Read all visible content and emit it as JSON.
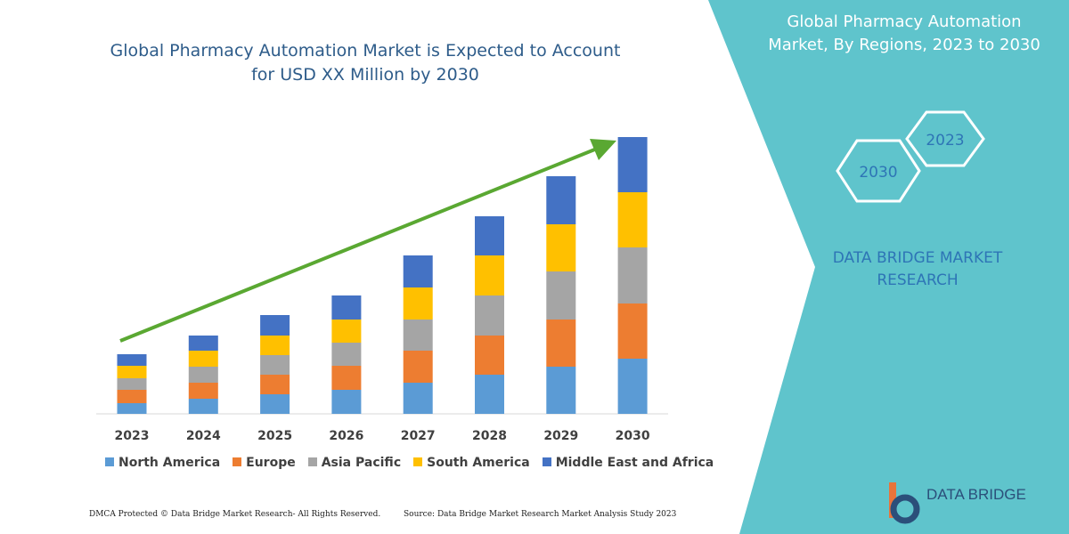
{
  "chart_data": {
    "type": "stacked-bar",
    "title": "Global Pharmacy Automation Market is Expected to Account for USD XX Million by 2030",
    "categories": [
      "2023",
      "2024",
      "2025",
      "2026",
      "2027",
      "2028",
      "2029",
      "2030"
    ],
    "series": [
      {
        "name": "North America",
        "color": "#5b9bd5",
        "values": [
          12,
          17,
          22,
          27,
          35,
          44,
          53,
          62
        ]
      },
      {
        "name": "Europe",
        "color": "#ed7d31",
        "values": [
          15,
          18,
          22,
          27,
          36,
          44,
          53,
          62
        ]
      },
      {
        "name": "Asia Pacific",
        "color": "#a5a5a5",
        "values": [
          13,
          18,
          22,
          26,
          35,
          45,
          54,
          63
        ]
      },
      {
        "name": "South America",
        "color": "#ffc000",
        "values": [
          14,
          18,
          22,
          26,
          36,
          45,
          53,
          62
        ]
      },
      {
        "name": "Middle East and Africa",
        "color": "#4472c4",
        "values": [
          13,
          17,
          23,
          27,
          36,
          44,
          54,
          62
        ]
      }
    ],
    "ylim": [
      0,
      320
    ]
  },
  "panel": {
    "title": "Global Pharmacy Automation Market, By Regions, 2023 to 2030",
    "hex_labels": [
      "2023",
      "2030"
    ],
    "brand": "DATA BRIDGE MARKET RESEARCH"
  },
  "footer": {
    "left": "DMCA Protected © Data Bridge Market Research-  All Rights Reserved.",
    "right": "Source: Data Bridge Market Research  Market Analysis Study 2023",
    "logo": "DATA BRIDGE"
  }
}
